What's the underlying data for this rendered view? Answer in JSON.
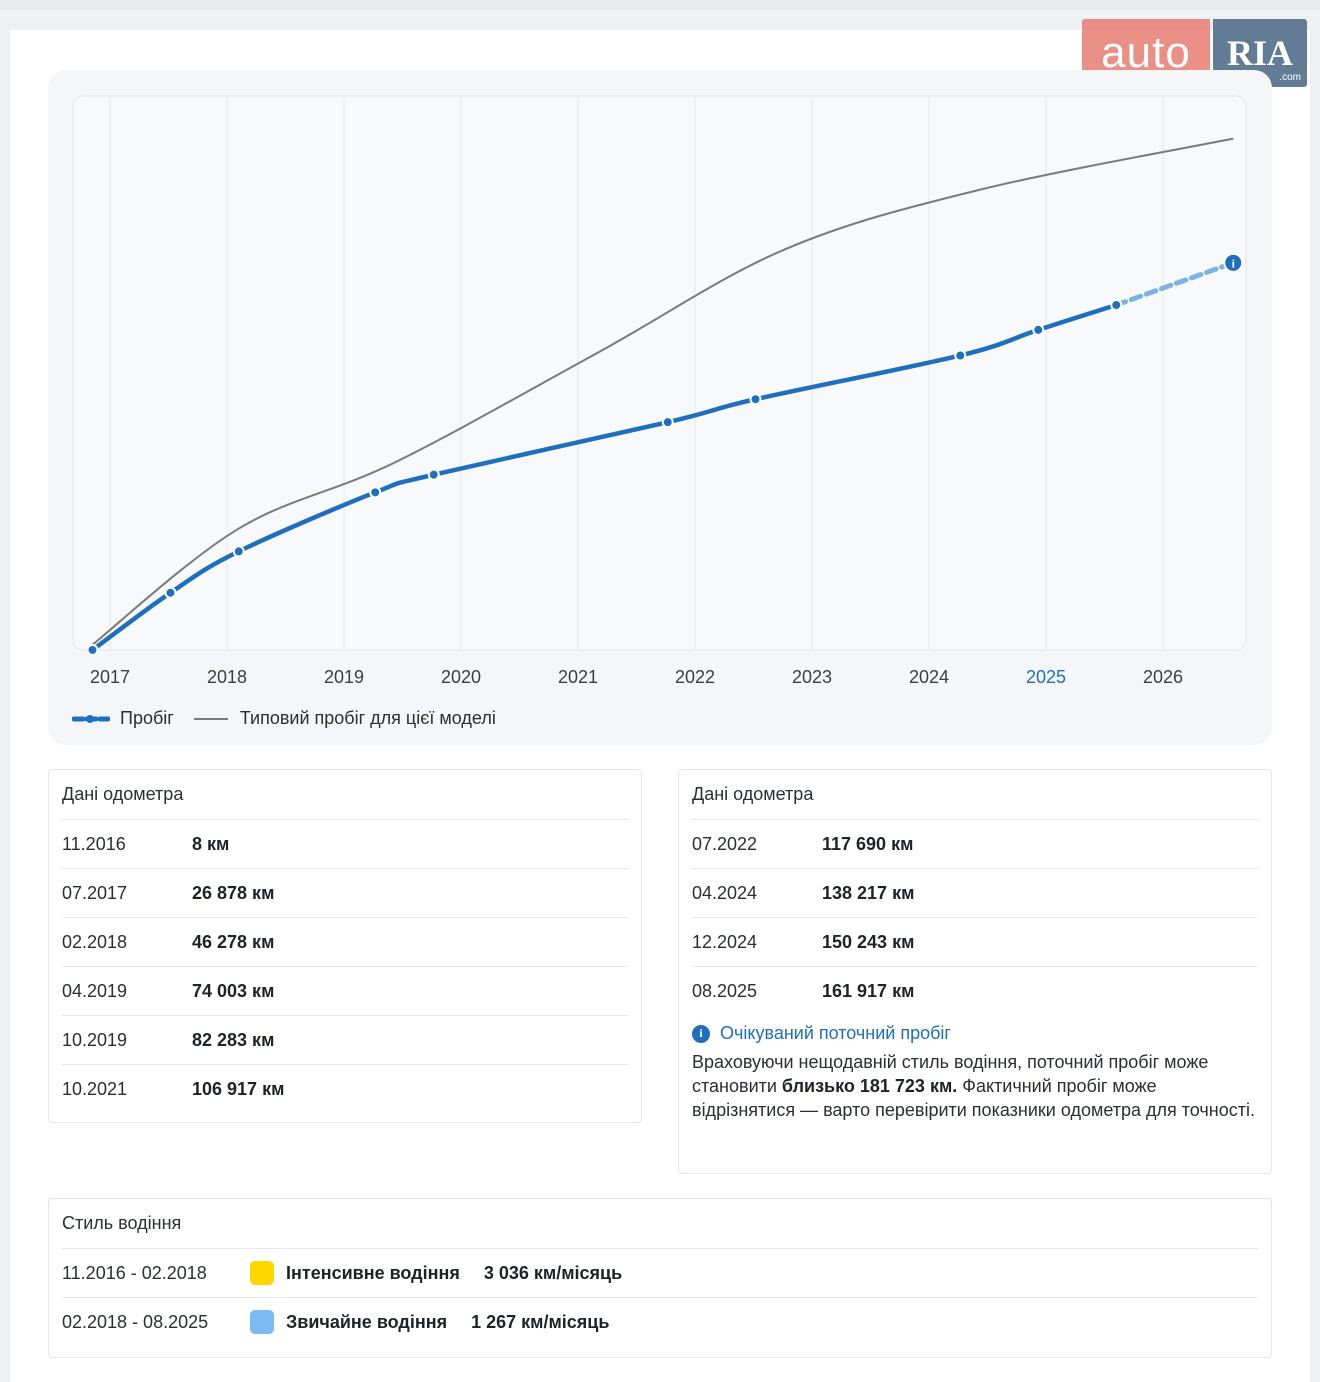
{
  "brand": {
    "auto": "auto",
    "ria": "RIA",
    "com": ".com"
  },
  "chart_data": {
    "type": "line",
    "x_tick_labels": [
      "2017",
      "2018",
      "2019",
      "2020",
      "2021",
      "2022",
      "2023",
      "2024",
      "2025",
      "2026"
    ],
    "highlighted_tick": "2025",
    "series": [
      {
        "name": "Пробіг",
        "color": "#1e6fbf",
        "points": [
          {
            "date": "11.2016",
            "km": 8
          },
          {
            "date": "07.2017",
            "km": 26878
          },
          {
            "date": "02.2018",
            "km": 46278
          },
          {
            "date": "04.2019",
            "km": 74003
          },
          {
            "date": "10.2019",
            "km": 82283
          },
          {
            "date": "10.2021",
            "km": 106917
          },
          {
            "date": "07.2022",
            "km": 117690
          },
          {
            "date": "04.2024",
            "km": 138217
          },
          {
            "date": "12.2024",
            "km": 150243
          },
          {
            "date": "08.2025",
            "km": 161917
          }
        ],
        "projection": {
          "date": "08.2026",
          "km": 181723
        }
      },
      {
        "name": "Типовий пробіг для цієї моделі",
        "color": "#7a7a7a",
        "points": [
          {
            "date": "11.2016",
            "km": 2500
          },
          {
            "date": "02.2018",
            "km": 57000
          },
          {
            "date": "06.2019",
            "km": 88000
          },
          {
            "date": "03.2021",
            "km": 140000
          },
          {
            "date": "10.2022",
            "km": 188000
          },
          {
            "date": "06.2024",
            "km": 216000
          },
          {
            "date": "08.2026",
            "km": 240000
          }
        ]
      }
    ],
    "y_axis": "hidden",
    "grid": "vertical",
    "legend_position": "bottom-left"
  },
  "legend": {
    "mileage": "Пробіг",
    "typical": "Типовий пробіг для цієї моделі"
  },
  "odometer_left": {
    "title": "Дані одометра",
    "rows": [
      {
        "date": "11.2016",
        "value": "8 км"
      },
      {
        "date": "07.2017",
        "value": "26 878 км"
      },
      {
        "date": "02.2018",
        "value": "46 278 км"
      },
      {
        "date": "04.2019",
        "value": "74 003 км"
      },
      {
        "date": "10.2019",
        "value": "82 283 км"
      },
      {
        "date": "10.2021",
        "value": "106 917 км"
      }
    ]
  },
  "odometer_right": {
    "title": "Дані одометра",
    "rows": [
      {
        "date": "07.2022",
        "value": "117 690 км"
      },
      {
        "date": "04.2024",
        "value": "138 217 км"
      },
      {
        "date": "12.2024",
        "value": "150 243 км"
      },
      {
        "date": "08.2025",
        "value": "161 917 км"
      }
    ],
    "expected": {
      "title": "Очікуваний поточний пробіг",
      "text_before": "Враховуючи нещодавній стиль водіння, поточний пробіг може становити ",
      "text_bold": "близько 181 723 км.",
      "text_after": " Фактичний пробіг може відрізнятися — варто перевірити показники одометра для точності."
    }
  },
  "driving_style": {
    "title": "Стиль водіння",
    "rows": [
      {
        "period": "11.2016 - 02.2018",
        "label": "Інтенсивне водіння",
        "rate": "3 036 км/місяць",
        "color": "#ffd600"
      },
      {
        "period": "02.2018 - 08.2025",
        "label": "Звичайне водіння",
        "rate": "1 267 км/місяць",
        "color": "#7dbaf5"
      }
    ]
  }
}
